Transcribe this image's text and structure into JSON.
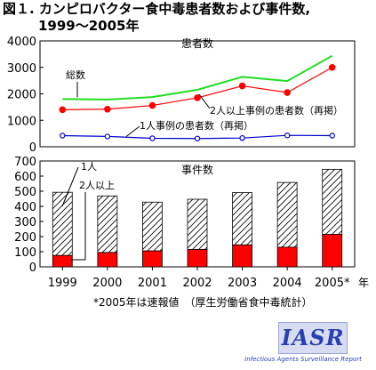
{
  "title": {
    "line1": "図１. カンピロバクター食中毒患者数および事件数,",
    "line2": "1999～2005年"
  },
  "chart_data": [
    {
      "type": "line",
      "title": "患者数",
      "x": [
        "1999",
        "2000",
        "2001",
        "2002",
        "2003",
        "2004",
        "2005*"
      ],
      "ylim": [
        0,
        4000
      ],
      "yticks": [
        0,
        1000,
        2000,
        3000,
        4000
      ],
      "series": [
        {
          "name": "総数",
          "values": [
            1802,
            1784,
            1880,
            2152,
            2642,
            2485,
            3439
          ],
          "color": "#22dd22"
        },
        {
          "name": "2人以上事例の患者数（再掲）",
          "values": [
            1400,
            1420,
            1560,
            1850,
            2300,
            2050,
            3000
          ],
          "color": "#ff0000"
        },
        {
          "name": "1人事例の患者数（再掲）",
          "values": [
            420,
            390,
            320,
            310,
            330,
            430,
            420
          ],
          "color": "#0000cc"
        }
      ]
    },
    {
      "type": "bar",
      "title": "事件数",
      "stacked": true,
      "categories": [
        "1999",
        "2000",
        "2001",
        "2002",
        "2003",
        "2004",
        "2005*"
      ],
      "ylim": [
        0,
        700
      ],
      "yticks": [
        0,
        100,
        200,
        300,
        400,
        500,
        600,
        700
      ],
      "xlabel": "年",
      "series": [
        {
          "name": "2人以上",
          "values": [
            75,
            95,
            105,
            115,
            145,
            130,
            215
          ],
          "color": "#ff0000"
        },
        {
          "name": "1人",
          "values": [
            418,
            374,
            323,
            332,
            346,
            428,
            430
          ],
          "color": "#ffffff",
          "pattern": "hatch"
        }
      ]
    }
  ],
  "footnote": "*2005年は速報値　（厚生労働省食中毒統計）",
  "logo": {
    "text": "IASR",
    "subtitle": "Infectious Agents Surveillance Report"
  }
}
